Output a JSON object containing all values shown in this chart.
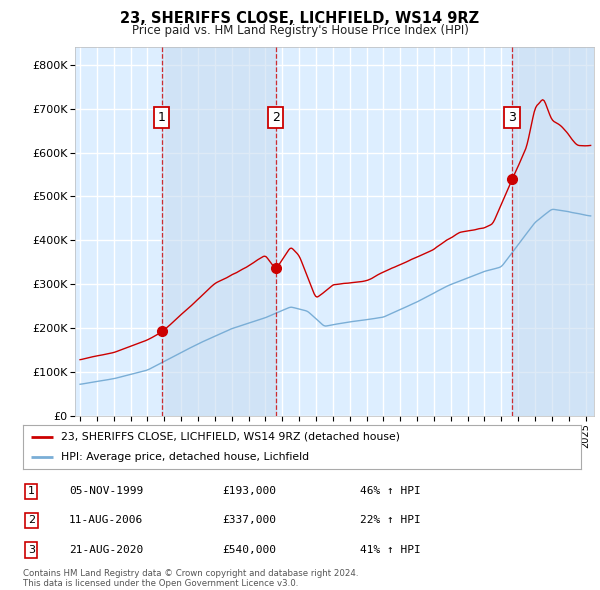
{
  "title": "23, SHERIFFS CLOSE, LICHFIELD, WS14 9RZ",
  "subtitle": "Price paid vs. HM Land Registry's House Price Index (HPI)",
  "legend_entry1": "23, SHERIFFS CLOSE, LICHFIELD, WS14 9RZ (detached house)",
  "legend_entry2": "HPI: Average price, detached house, Lichfield",
  "table_entries": [
    {
      "num": "1",
      "date": "05-NOV-1999",
      "price": "£193,000",
      "change": "46% ↑ HPI"
    },
    {
      "num": "2",
      "date": "11-AUG-2006",
      "price": "£337,000",
      "change": "22% ↑ HPI"
    },
    {
      "num": "3",
      "date": "21-AUG-2020",
      "price": "£540,000",
      "change": "41% ↑ HPI"
    }
  ],
  "footer": "Contains HM Land Registry data © Crown copyright and database right 2024.\nThis data is licensed under the Open Government Licence v3.0.",
  "line_color_red": "#cc0000",
  "line_color_blue": "#7aaed6",
  "bg_color": "#ddeeff",
  "shade_color": "#c8dcf0",
  "grid_color": "#ffffff",
  "ylim": [
    0,
    840000
  ],
  "yticks": [
    0,
    100000,
    200000,
    300000,
    400000,
    500000,
    600000,
    700000,
    800000
  ],
  "xmin": 1994.7,
  "xmax": 2025.5,
  "sale_years": [
    1999.85,
    2006.61,
    2020.64
  ],
  "sale_values": [
    193000,
    337000,
    540000
  ],
  "sale_labels": [
    "1",
    "2",
    "3"
  ]
}
